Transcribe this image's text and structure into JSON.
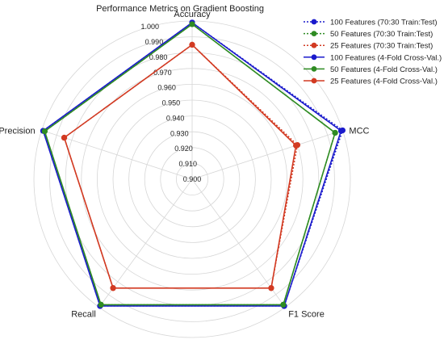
{
  "chart_data": {
    "type": "radar",
    "title": "Performance Metrics on Gradient Boosting",
    "axes": [
      "Accuracy",
      "MCC",
      "F1 Score",
      "Recall",
      "Precision"
    ],
    "rlim": [
      0.9,
      1.0
    ],
    "rticks": [
      "0.900",
      "0.910",
      "0.920",
      "0.930",
      "0.940",
      "0.950",
      "0.960",
      "0.970",
      "0.980",
      "0.990",
      "1.000"
    ],
    "grid": true,
    "legend_position": "top-right",
    "series": [
      {
        "name": "100 Features (70:30  Train:Test)",
        "color": "#1a1acc",
        "dashed": true,
        "values": [
          0.999,
          1.0,
          0.999,
          0.999,
          0.999
        ]
      },
      {
        "name": "50 Features (70:30  Train:Test)",
        "color": "#2e8b22",
        "dashed": true,
        "values": [
          0.998,
          0.995,
          0.998,
          0.998,
          0.998
        ]
      },
      {
        "name": "25 Features (70:30  Train:Test)",
        "color": "#d23a22",
        "dashed": true,
        "values": [
          0.985,
          0.97,
          0.985,
          0.985,
          0.985
        ]
      },
      {
        "name": "100 Features (4-Fold Cross-Val.)",
        "color": "#1a1acc",
        "dashed": false,
        "values": [
          0.999,
          0.999,
          0.999,
          0.999,
          0.999
        ]
      },
      {
        "name": "50 Features (4-Fold Cross-Val.)",
        "color": "#2e8b22",
        "dashed": false,
        "values": [
          0.998,
          0.995,
          0.998,
          0.998,
          0.998
        ]
      },
      {
        "name": "25 Features (4-Fold Cross-Val.)",
        "color": "#d23a22",
        "dashed": false,
        "values": [
          0.985,
          0.969,
          0.985,
          0.985,
          0.985
        ]
      }
    ]
  }
}
